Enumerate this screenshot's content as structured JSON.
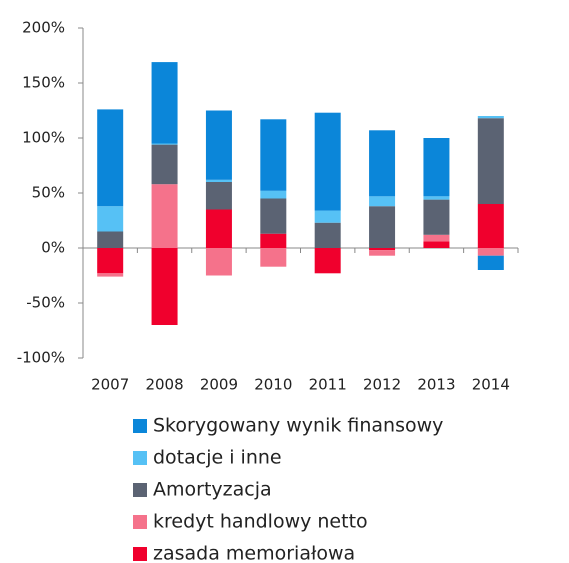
{
  "chart_data": {
    "type": "stacked_bar",
    "categories": [
      "2007",
      "2008",
      "2009",
      "2010",
      "2011",
      "2012",
      "2013",
      "2014"
    ],
    "series": [
      {
        "name": "Skorygowany wynik finansowy",
        "color": "#0b86d9",
        "values": [
          88,
          74,
          63,
          65,
          89,
          60,
          53,
          -13
        ]
      },
      {
        "name": "dotacje i inne",
        "color": "#56c1f5",
        "values": [
          23,
          1,
          2,
          7,
          11,
          9,
          3,
          2
        ]
      },
      {
        "name": "Amortyzacja",
        "color": "#5b6373",
        "values": [
          15,
          36,
          25,
          32,
          23,
          38,
          32,
          78
        ]
      },
      {
        "name": "kredyt handlowy netto",
        "color": "#f5728b",
        "values": [
          -3,
          58,
          -25,
          -17,
          0,
          -5,
          6,
          -7
        ]
      },
      {
        "name": "zasada memoriałowa",
        "color": "#f0002d",
        "values": [
          -23,
          -70,
          35,
          13,
          -23,
          -2,
          6,
          40
        ]
      }
    ],
    "ylim": [
      -100,
      200
    ],
    "yticks": [
      {
        "value": -100,
        "label": "-100%"
      },
      {
        "value": -50,
        "label": "-50%"
      },
      {
        "value": 0,
        "label": "0%"
      },
      {
        "value": 50,
        "label": "50%"
      },
      {
        "value": 100,
        "label": "100%"
      },
      {
        "value": 150,
        "label": "150%"
      },
      {
        "value": 200,
        "label": "200%"
      }
    ],
    "legend": "bottom"
  }
}
